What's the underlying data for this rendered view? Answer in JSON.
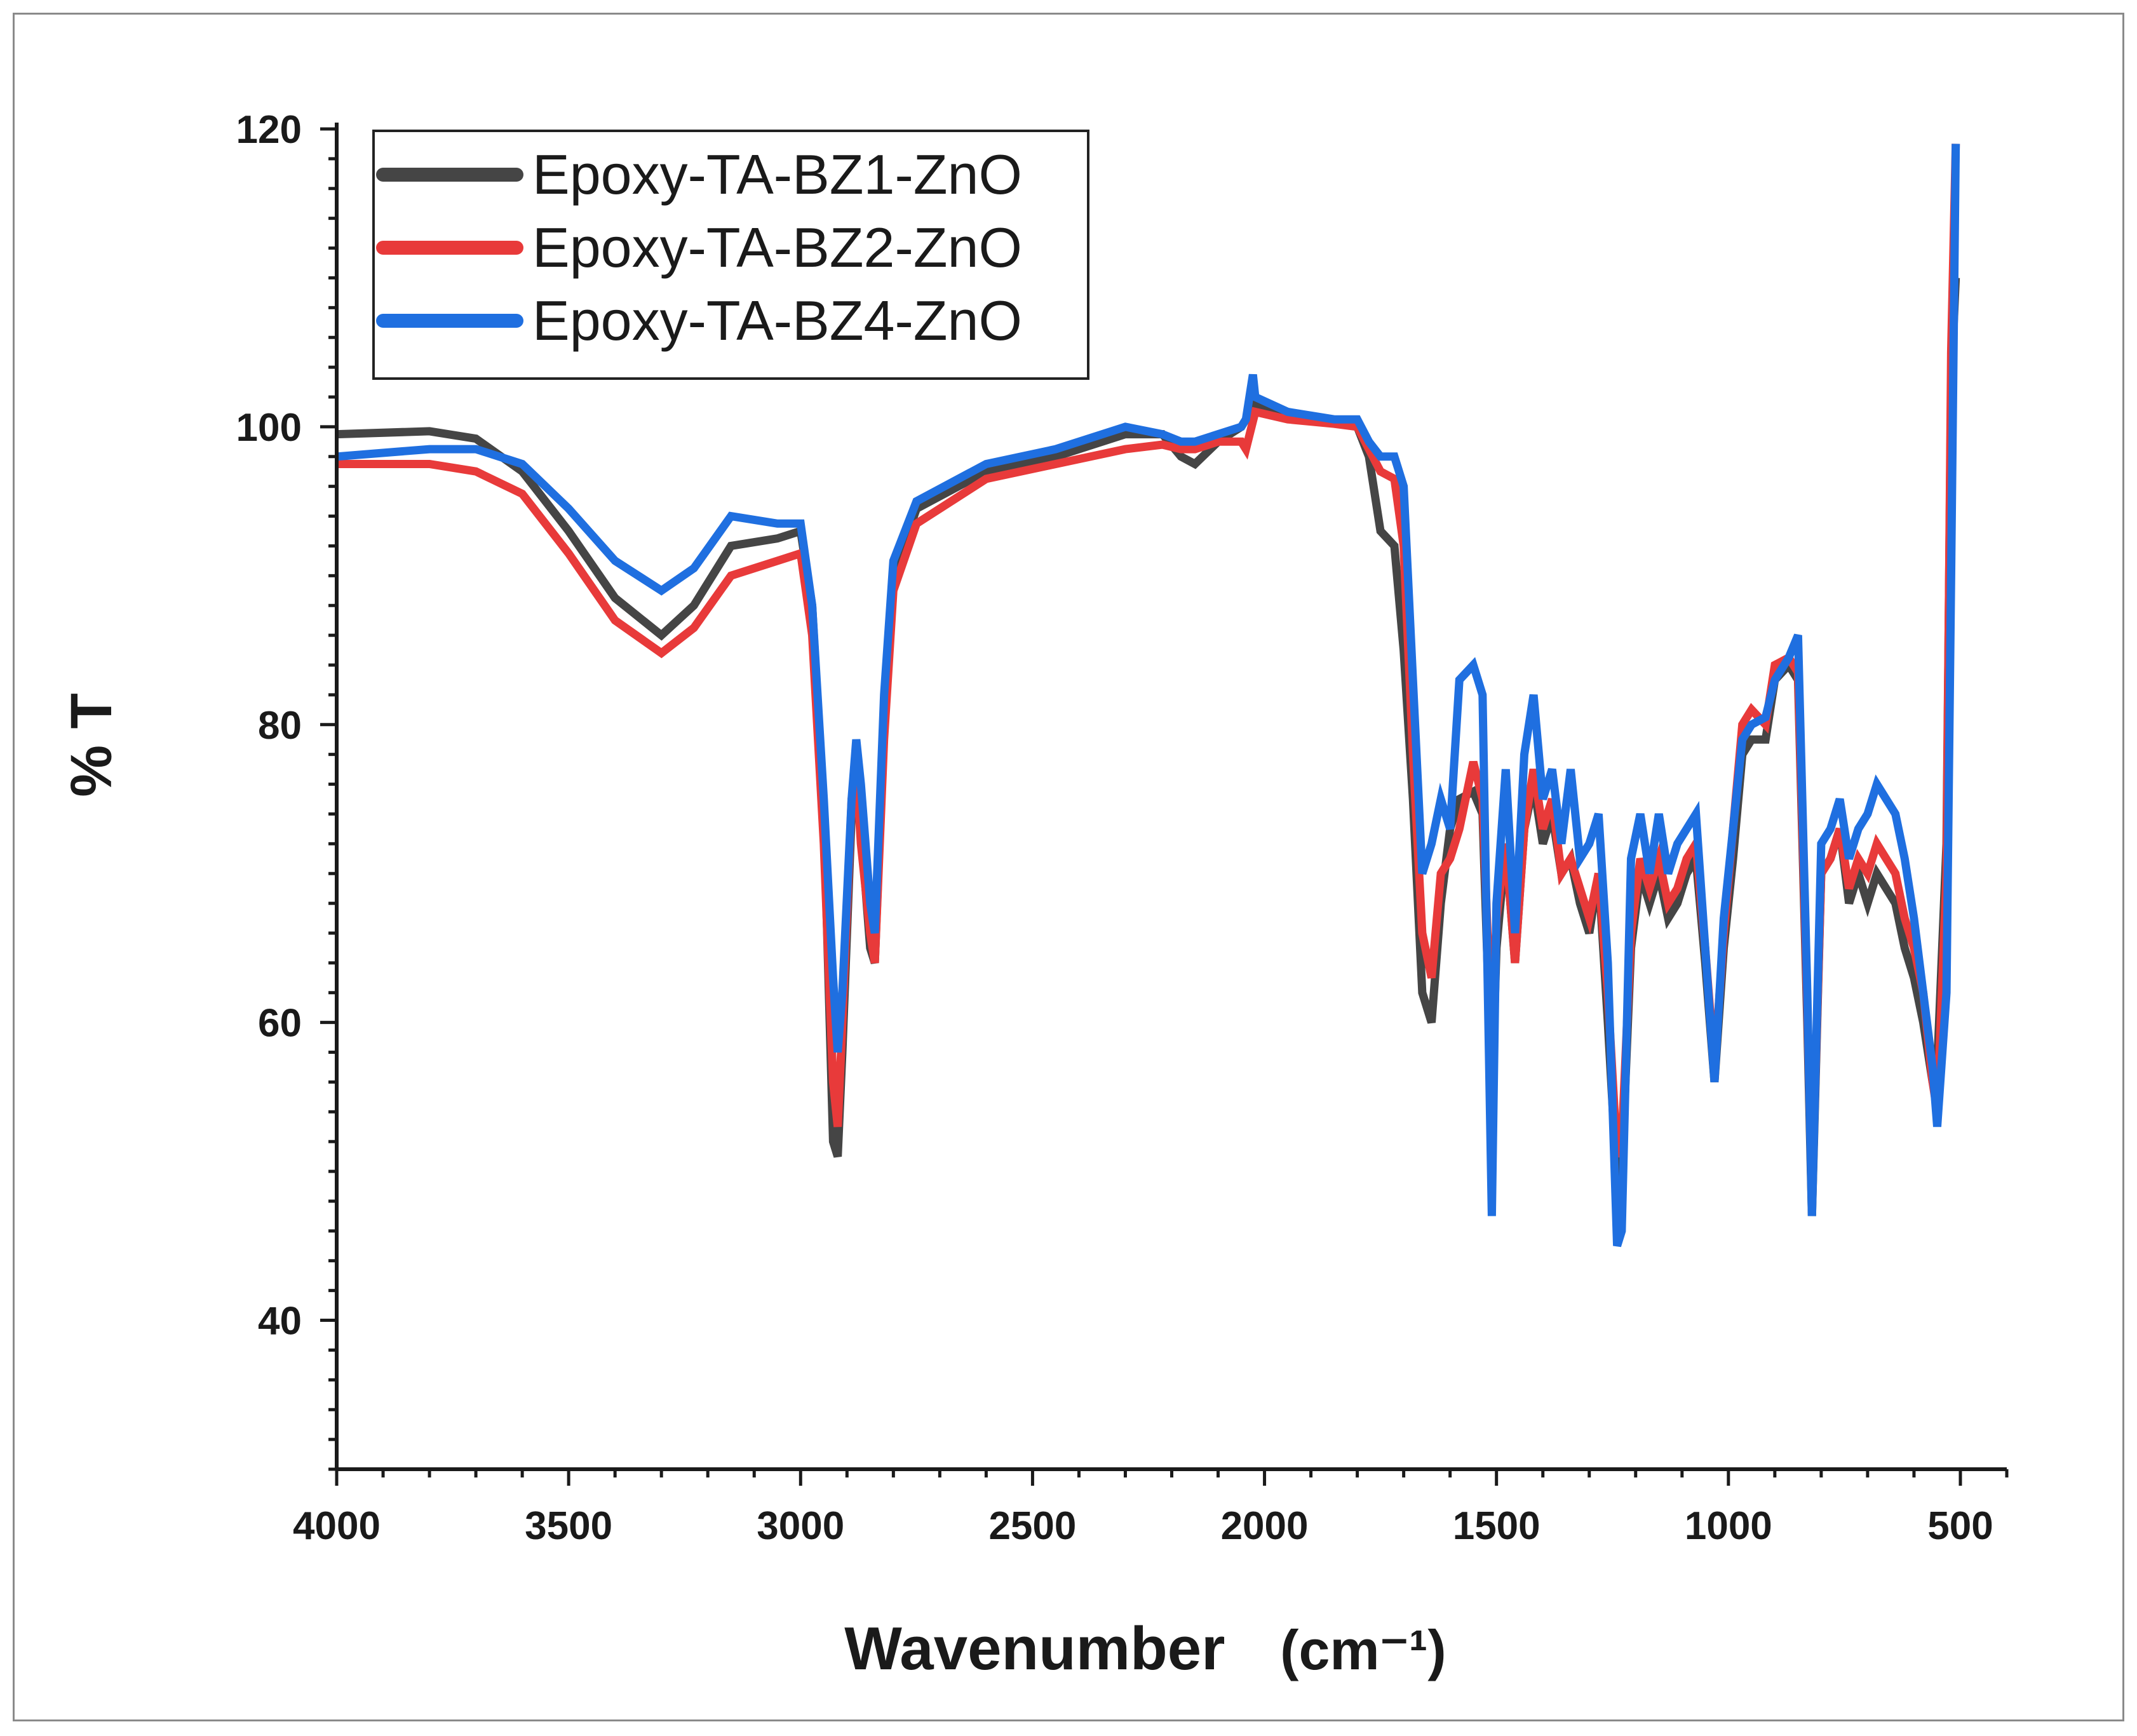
{
  "chart_data": {
    "type": "line",
    "xlabel": "Wavenumber",
    "xlabel_unit": "(cm⁻¹)",
    "ylabel": "% T",
    "xlim": [
      4000,
      400
    ],
    "ylim": [
      30,
      120
    ],
    "x_ticks": [
      "4000",
      "3500",
      "3000",
      "2500",
      "2000",
      "1500",
      "1000",
      "500"
    ],
    "y_ticks": [
      "40",
      "60",
      "80",
      "100",
      "120"
    ],
    "legend_position": "top-left",
    "series": [
      {
        "name": "Epoxy-TA-BZ1-ZnO",
        "color": "#454545",
        "points": [
          [
            4000,
            99.5
          ],
          [
            3800,
            99.7
          ],
          [
            3700,
            99.2
          ],
          [
            3600,
            97
          ],
          [
            3500,
            93
          ],
          [
            3400,
            88.5
          ],
          [
            3300,
            86
          ],
          [
            3230,
            88
          ],
          [
            3150,
            92
          ],
          [
            3050,
            92.5
          ],
          [
            3000,
            93
          ],
          [
            2975,
            88
          ],
          [
            2950,
            74
          ],
          [
            2930,
            52
          ],
          [
            2920,
            51
          ],
          [
            2910,
            58
          ],
          [
            2890,
            74
          ],
          [
            2880,
            78
          ],
          [
            2870,
            73
          ],
          [
            2850,
            65
          ],
          [
            2840,
            64
          ],
          [
            2820,
            80
          ],
          [
            2800,
            90
          ],
          [
            2750,
            94.5
          ],
          [
            2600,
            97
          ],
          [
            2450,
            98
          ],
          [
            2300,
            99.5
          ],
          [
            2220,
            99.5
          ],
          [
            2180,
            98
          ],
          [
            2150,
            97.5
          ],
          [
            2100,
            99
          ],
          [
            2050,
            100
          ],
          [
            2040,
            100.5
          ],
          [
            2020,
            101.5
          ],
          [
            1950,
            101
          ],
          [
            1850,
            100.3
          ],
          [
            1800,
            100
          ],
          [
            1775,
            98
          ],
          [
            1750,
            93
          ],
          [
            1720,
            92
          ],
          [
            1700,
            85
          ],
          [
            1680,
            75
          ],
          [
            1660,
            62
          ],
          [
            1640,
            60
          ],
          [
            1620,
            68
          ],
          [
            1600,
            73
          ],
          [
            1580,
            75
          ],
          [
            1550,
            75.5
          ],
          [
            1530,
            74
          ],
          [
            1510,
            55
          ],
          [
            1500,
            65
          ],
          [
            1480,
            72
          ],
          [
            1460,
            64
          ],
          [
            1440,
            73
          ],
          [
            1420,
            76
          ],
          [
            1400,
            72
          ],
          [
            1380,
            74
          ],
          [
            1360,
            70
          ],
          [
            1340,
            71
          ],
          [
            1320,
            68
          ],
          [
            1300,
            66
          ],
          [
            1280,
            70
          ],
          [
            1260,
            60
          ],
          [
            1240,
            49
          ],
          [
            1230,
            50
          ],
          [
            1210,
            65
          ],
          [
            1190,
            70
          ],
          [
            1170,
            68
          ],
          [
            1150,
            70
          ],
          [
            1130,
            67
          ],
          [
            1110,
            68
          ],
          [
            1090,
            70
          ],
          [
            1070,
            71
          ],
          [
            1050,
            64
          ],
          [
            1030,
            56
          ],
          [
            1010,
            65
          ],
          [
            990,
            71
          ],
          [
            970,
            78
          ],
          [
            950,
            79
          ],
          [
            920,
            79
          ],
          [
            900,
            83
          ],
          [
            870,
            84
          ],
          [
            850,
            83
          ],
          [
            830,
            60
          ],
          [
            820,
            47
          ],
          [
            800,
            70
          ],
          [
            780,
            71
          ],
          [
            760,
            73
          ],
          [
            740,
            68
          ],
          [
            720,
            70
          ],
          [
            700,
            68
          ],
          [
            680,
            70
          ],
          [
            660,
            69
          ],
          [
            640,
            68
          ],
          [
            620,
            65
          ],
          [
            600,
            63
          ],
          [
            580,
            60
          ],
          [
            560,
            56
          ],
          [
            550,
            57
          ],
          [
            530,
            72
          ],
          [
            520,
            103
          ],
          [
            510,
            110
          ]
        ]
      },
      {
        "name": "Epoxy-TA-BZ2-ZnO",
        "color": "#e83a3a",
        "points": [
          [
            4000,
            97.5
          ],
          [
            3800,
            97.5
          ],
          [
            3700,
            97
          ],
          [
            3600,
            95.5
          ],
          [
            3500,
            91.5
          ],
          [
            3400,
            87
          ],
          [
            3300,
            84.8
          ],
          [
            3230,
            86.5
          ],
          [
            3150,
            90
          ],
          [
            3050,
            91
          ],
          [
            3000,
            91.5
          ],
          [
            2975,
            86
          ],
          [
            2950,
            72
          ],
          [
            2930,
            56
          ],
          [
            2920,
            53
          ],
          [
            2910,
            60
          ],
          [
            2890,
            75
          ],
          [
            2880,
            77
          ],
          [
            2870,
            72
          ],
          [
            2850,
            66
          ],
          [
            2840,
            64
          ],
          [
            2820,
            79
          ],
          [
            2800,
            89
          ],
          [
            2750,
            93.5
          ],
          [
            2600,
            96.5
          ],
          [
            2450,
            97.5
          ],
          [
            2300,
            98.5
          ],
          [
            2220,
            98.8
          ],
          [
            2180,
            98.5
          ],
          [
            2150,
            98.5
          ],
          [
            2100,
            99
          ],
          [
            2050,
            99
          ],
          [
            2040,
            98.5
          ],
          [
            2020,
            101
          ],
          [
            1950,
            100.5
          ],
          [
            1850,
            100.2
          ],
          [
            1800,
            100
          ],
          [
            1775,
            98.5
          ],
          [
            1750,
            97
          ],
          [
            1720,
            96.5
          ],
          [
            1700,
            92
          ],
          [
            1680,
            78
          ],
          [
            1660,
            66
          ],
          [
            1640,
            63
          ],
          [
            1620,
            70
          ],
          [
            1600,
            71
          ],
          [
            1580,
            73
          ],
          [
            1550,
            77.5
          ],
          [
            1530,
            75
          ],
          [
            1510,
            58
          ],
          [
            1500,
            67
          ],
          [
            1480,
            72
          ],
          [
            1460,
            64
          ],
          [
            1440,
            73
          ],
          [
            1420,
            77
          ],
          [
            1400,
            73
          ],
          [
            1380,
            75
          ],
          [
            1360,
            70
          ],
          [
            1340,
            71
          ],
          [
            1320,
            69
          ],
          [
            1300,
            67
          ],
          [
            1280,
            70
          ],
          [
            1260,
            62
          ],
          [
            1240,
            51
          ],
          [
            1230,
            52
          ],
          [
            1210,
            66
          ],
          [
            1190,
            71
          ],
          [
            1170,
            69
          ],
          [
            1150,
            71
          ],
          [
            1130,
            68
          ],
          [
            1110,
            69
          ],
          [
            1090,
            71
          ],
          [
            1070,
            72
          ],
          [
            1050,
            65
          ],
          [
            1030,
            57
          ],
          [
            1010,
            66
          ],
          [
            990,
            73
          ],
          [
            970,
            80
          ],
          [
            950,
            81
          ],
          [
            920,
            80
          ],
          [
            900,
            84
          ],
          [
            870,
            84.5
          ],
          [
            850,
            83.5
          ],
          [
            830,
            61
          ],
          [
            820,
            48
          ],
          [
            800,
            70
          ],
          [
            780,
            71
          ],
          [
            760,
            73
          ],
          [
            740,
            69
          ],
          [
            720,
            71
          ],
          [
            700,
            70
          ],
          [
            680,
            72
          ],
          [
            660,
            71
          ],
          [
            640,
            70
          ],
          [
            620,
            67
          ],
          [
            600,
            65
          ],
          [
            580,
            62
          ],
          [
            560,
            56
          ],
          [
            550,
            54
          ],
          [
            530,
            70
          ],
          [
            520,
            105
          ],
          [
            510,
            119
          ]
        ]
      },
      {
        "name": "Epoxy-TA-BZ4-ZnO",
        "color": "#1f6fe0",
        "points": [
          [
            4000,
            98
          ],
          [
            3800,
            98.5
          ],
          [
            3700,
            98.5
          ],
          [
            3600,
            97.5
          ],
          [
            3500,
            94.5
          ],
          [
            3400,
            91
          ],
          [
            3300,
            89
          ],
          [
            3230,
            90.5
          ],
          [
            3150,
            94
          ],
          [
            3050,
            93.5
          ],
          [
            3000,
            93.5
          ],
          [
            2975,
            88
          ],
          [
            2950,
            75
          ],
          [
            2930,
            63
          ],
          [
            2920,
            58
          ],
          [
            2910,
            62
          ],
          [
            2890,
            75
          ],
          [
            2880,
            79
          ],
          [
            2870,
            76
          ],
          [
            2850,
            68
          ],
          [
            2840,
            66
          ],
          [
            2820,
            82
          ],
          [
            2800,
            91
          ],
          [
            2750,
            95
          ],
          [
            2600,
            97.5
          ],
          [
            2450,
            98.5
          ],
          [
            2300,
            100
          ],
          [
            2220,
            99.5
          ],
          [
            2180,
            99
          ],
          [
            2150,
            99
          ],
          [
            2100,
            99.5
          ],
          [
            2050,
            100
          ],
          [
            2040,
            100.5
          ],
          [
            2025,
            103.5
          ],
          [
            2020,
            102
          ],
          [
            1950,
            101
          ],
          [
            1850,
            100.5
          ],
          [
            1800,
            100.5
          ],
          [
            1775,
            99
          ],
          [
            1750,
            98
          ],
          [
            1720,
            98
          ],
          [
            1700,
            96
          ],
          [
            1680,
            83
          ],
          [
            1660,
            70
          ],
          [
            1640,
            72
          ],
          [
            1620,
            75
          ],
          [
            1600,
            73
          ],
          [
            1580,
            83
          ],
          [
            1550,
            84
          ],
          [
            1530,
            82
          ],
          [
            1510,
            47
          ],
          [
            1500,
            68
          ],
          [
            1480,
            77
          ],
          [
            1460,
            66
          ],
          [
            1440,
            78
          ],
          [
            1420,
            82
          ],
          [
            1400,
            75
          ],
          [
            1380,
            77
          ],
          [
            1360,
            72
          ],
          [
            1340,
            77
          ],
          [
            1320,
            71
          ],
          [
            1300,
            72
          ],
          [
            1280,
            74
          ],
          [
            1260,
            64
          ],
          [
            1240,
            45
          ],
          [
            1230,
            46
          ],
          [
            1210,
            71
          ],
          [
            1190,
            74
          ],
          [
            1170,
            70
          ],
          [
            1150,
            74
          ],
          [
            1130,
            70
          ],
          [
            1110,
            72
          ],
          [
            1090,
            73
          ],
          [
            1070,
            74
          ],
          [
            1050,
            65
          ],
          [
            1030,
            56
          ],
          [
            1010,
            67
          ],
          [
            990,
            73
          ],
          [
            970,
            79
          ],
          [
            950,
            80
          ],
          [
            920,
            80.5
          ],
          [
            900,
            83
          ],
          [
            870,
            84.5
          ],
          [
            850,
            86
          ],
          [
            830,
            62
          ],
          [
            820,
            47
          ],
          [
            800,
            72
          ],
          [
            780,
            73
          ],
          [
            760,
            75
          ],
          [
            740,
            71
          ],
          [
            720,
            73
          ],
          [
            700,
            74
          ],
          [
            680,
            76
          ],
          [
            660,
            75
          ],
          [
            640,
            74
          ],
          [
            620,
            71
          ],
          [
            600,
            67
          ],
          [
            580,
            62
          ],
          [
            560,
            57
          ],
          [
            550,
            53
          ],
          [
            530,
            62
          ],
          [
            520,
            90
          ],
          [
            510,
            119
          ]
        ]
      }
    ]
  }
}
